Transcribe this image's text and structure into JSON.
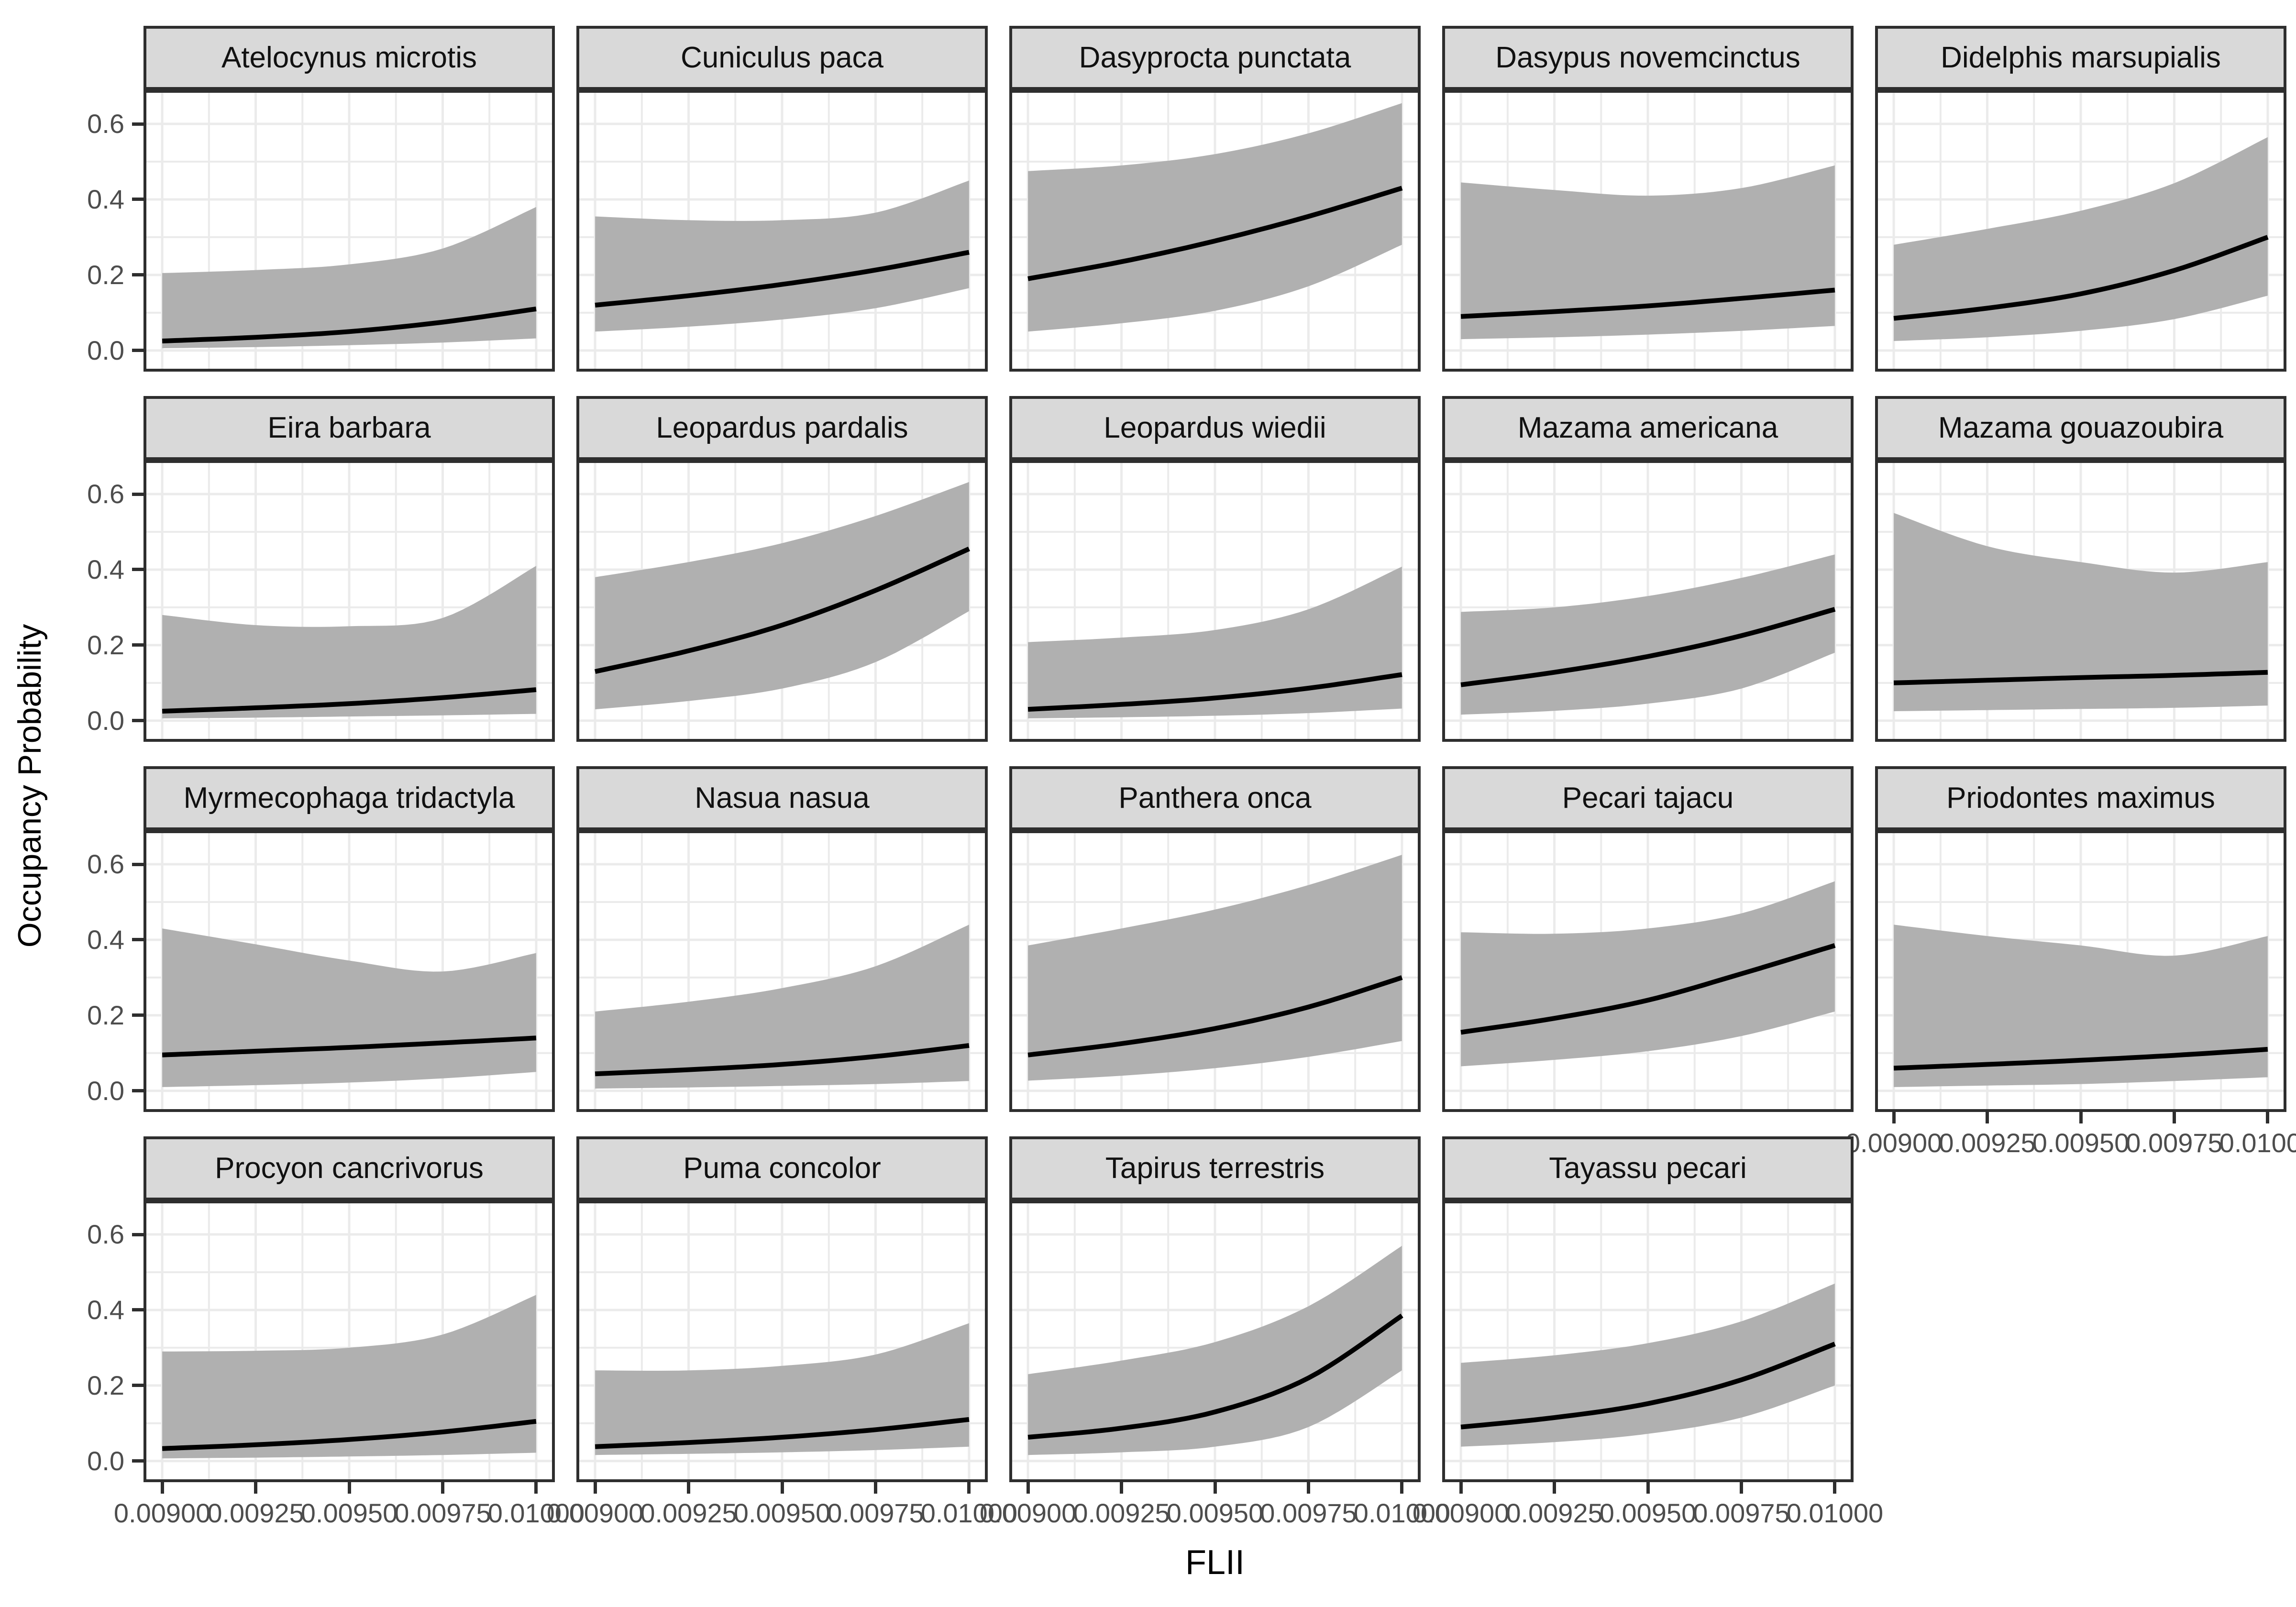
{
  "figure": {
    "y_axis_title": "Occupancy Probability",
    "x_axis_title": "FLII"
  },
  "axes": {
    "y_tick_labels": [
      "0.0",
      "0.2",
      "0.4",
      "0.6"
    ],
    "y_tick_values": [
      0.0,
      0.2,
      0.4,
      0.6
    ],
    "x_tick_labels": [
      "0.00900",
      "0.00925",
      "0.00950",
      "0.00975",
      "0.01000"
    ],
    "x_tick_values": [
      0.009,
      0.00925,
      0.0095,
      0.00975,
      0.01
    ],
    "x_domain": [
      0.00895,
      0.01005
    ],
    "y_domain": [
      -0.056,
      0.69
    ],
    "x_gridline_step": 0.000125,
    "y_gridline_step": 0.1,
    "grid": "on"
  },
  "style": {
    "ribbon_color": "#B0B0B0",
    "mean_line_color": "#000000",
    "strip_background": "#D9D9D9",
    "strip_border": "#2E2E2E",
    "panel_border": "#2E2E2E",
    "panel_background": "#FFFFFF",
    "gridline_color": "#EBEBEB",
    "tick_label_color": "#4D4D4D",
    "tick_mark_color": "#2E2E2E",
    "axis_title_color": "#000000"
  },
  "chart_data": {
    "type": "line",
    "subtype": "faceted-ribbon",
    "title": "",
    "xlabel": "FLII",
    "ylabel": "Occupancy Probability",
    "x": [
      0.009,
      0.00925,
      0.0095,
      0.00975,
      0.01
    ],
    "layout": {
      "rows": 4,
      "cols": 5,
      "last_row_panels": 4
    },
    "series_legend": [
      "mean occupancy",
      "95% CI lower",
      "95% CI upper"
    ],
    "facets": [
      {
        "species": "Atelocynus microtis",
        "mean": [
          0.025,
          0.035,
          0.05,
          0.075,
          0.11
        ],
        "lower": [
          0.006,
          0.009,
          0.014,
          0.021,
          0.032
        ],
        "upper": [
          0.205,
          0.213,
          0.228,
          0.27,
          0.38
        ]
      },
      {
        "species": "Cuniculus paca",
        "mean": [
          0.12,
          0.145,
          0.175,
          0.213,
          0.26
        ],
        "lower": [
          0.05,
          0.063,
          0.082,
          0.112,
          0.165
        ],
        "upper": [
          0.355,
          0.345,
          0.345,
          0.365,
          0.45
        ]
      },
      {
        "species": "Dasyprocta punctata",
        "mean": [
          0.19,
          0.235,
          0.29,
          0.355,
          0.43
        ],
        "lower": [
          0.05,
          0.072,
          0.105,
          0.17,
          0.28
        ],
        "upper": [
          0.475,
          0.49,
          0.52,
          0.575,
          0.655
        ]
      },
      {
        "species": "Dasypus novemcinctus",
        "mean": [
          0.09,
          0.103,
          0.118,
          0.138,
          0.16
        ],
        "lower": [
          0.03,
          0.035,
          0.042,
          0.052,
          0.065
        ],
        "upper": [
          0.445,
          0.425,
          0.41,
          0.43,
          0.49
        ]
      },
      {
        "species": "Didelphis marsupialis",
        "mean": [
          0.085,
          0.112,
          0.15,
          0.212,
          0.3
        ],
        "lower": [
          0.025,
          0.035,
          0.052,
          0.083,
          0.145
        ],
        "upper": [
          0.28,
          0.322,
          0.37,
          0.443,
          0.565
        ]
      },
      {
        "species": "Eira barbara",
        "mean": [
          0.025,
          0.034,
          0.045,
          0.061,
          0.082
        ],
        "lower": [
          0.006,
          0.008,
          0.011,
          0.014,
          0.018
        ],
        "upper": [
          0.28,
          0.253,
          0.25,
          0.272,
          0.41
        ]
      },
      {
        "species": "Leopardus pardalis",
        "mean": [
          0.13,
          0.185,
          0.253,
          0.345,
          0.455
        ],
        "lower": [
          0.03,
          0.052,
          0.085,
          0.155,
          0.29
        ],
        "upper": [
          0.38,
          0.42,
          0.47,
          0.542,
          0.632
        ]
      },
      {
        "species": "Leopardus wiedii",
        "mean": [
          0.03,
          0.043,
          0.06,
          0.086,
          0.122
        ],
        "lower": [
          0.006,
          0.009,
          0.013,
          0.02,
          0.032
        ],
        "upper": [
          0.208,
          0.22,
          0.24,
          0.295,
          0.408
        ]
      },
      {
        "species": "Mazama americana",
        "mean": [
          0.095,
          0.128,
          0.17,
          0.225,
          0.295
        ],
        "lower": [
          0.016,
          0.026,
          0.045,
          0.085,
          0.18
        ],
        "upper": [
          0.288,
          0.3,
          0.33,
          0.378,
          0.44
        ]
      },
      {
        "species": "Mazama gouazoubira",
        "mean": [
          0.1,
          0.107,
          0.114,
          0.12,
          0.128
        ],
        "lower": [
          0.025,
          0.028,
          0.031,
          0.034,
          0.04
        ],
        "upper": [
          0.55,
          0.462,
          0.42,
          0.392,
          0.42
        ]
      },
      {
        "species": "Myrmecophaga tridactyla",
        "mean": [
          0.095,
          0.105,
          0.115,
          0.127,
          0.14
        ],
        "lower": [
          0.01,
          0.015,
          0.022,
          0.033,
          0.05
        ],
        "upper": [
          0.43,
          0.388,
          0.345,
          0.316,
          0.365
        ]
      },
      {
        "species": "Nasua nasua",
        "mean": [
          0.045,
          0.056,
          0.07,
          0.091,
          0.12
        ],
        "lower": [
          0.006,
          0.009,
          0.013,
          0.018,
          0.026
        ],
        "upper": [
          0.21,
          0.236,
          0.272,
          0.33,
          0.44
        ]
      },
      {
        "species": "Panthera onca",
        "mean": [
          0.095,
          0.125,
          0.165,
          0.222,
          0.3
        ],
        "lower": [
          0.027,
          0.04,
          0.06,
          0.09,
          0.132
        ],
        "upper": [
          0.385,
          0.43,
          0.48,
          0.545,
          0.625
        ]
      },
      {
        "species": "Pecari tajacu",
        "mean": [
          0.155,
          0.192,
          0.24,
          0.31,
          0.385
        ],
        "lower": [
          0.065,
          0.082,
          0.105,
          0.145,
          0.21
        ],
        "upper": [
          0.42,
          0.416,
          0.43,
          0.47,
          0.555
        ]
      },
      {
        "species": "Priodontes maximus",
        "mean": [
          0.06,
          0.07,
          0.081,
          0.094,
          0.11
        ],
        "lower": [
          0.01,
          0.014,
          0.018,
          0.026,
          0.036
        ],
        "upper": [
          0.44,
          0.41,
          0.385,
          0.358,
          0.41
        ]
      },
      {
        "species": "Procyon cancrivorus",
        "mean": [
          0.033,
          0.043,
          0.057,
          0.077,
          0.105
        ],
        "lower": [
          0.007,
          0.009,
          0.012,
          0.016,
          0.022
        ],
        "upper": [
          0.29,
          0.292,
          0.3,
          0.335,
          0.44
        ]
      },
      {
        "species": "Puma concolor",
        "mean": [
          0.038,
          0.049,
          0.063,
          0.083,
          0.11
        ],
        "lower": [
          0.016,
          0.019,
          0.023,
          0.029,
          0.038
        ],
        "upper": [
          0.24,
          0.24,
          0.252,
          0.282,
          0.365
        ]
      },
      {
        "species": "Tapirus terrestris",
        "mean": [
          0.063,
          0.087,
          0.13,
          0.22,
          0.385
        ],
        "lower": [
          0.016,
          0.023,
          0.038,
          0.09,
          0.24
        ],
        "upper": [
          0.23,
          0.266,
          0.315,
          0.41,
          0.57
        ]
      },
      {
        "species": "Tayassu pecari",
        "mean": [
          0.09,
          0.115,
          0.152,
          0.215,
          0.31
        ],
        "lower": [
          0.038,
          0.05,
          0.072,
          0.115,
          0.2
        ],
        "upper": [
          0.26,
          0.28,
          0.312,
          0.37,
          0.47
        ]
      }
    ]
  }
}
